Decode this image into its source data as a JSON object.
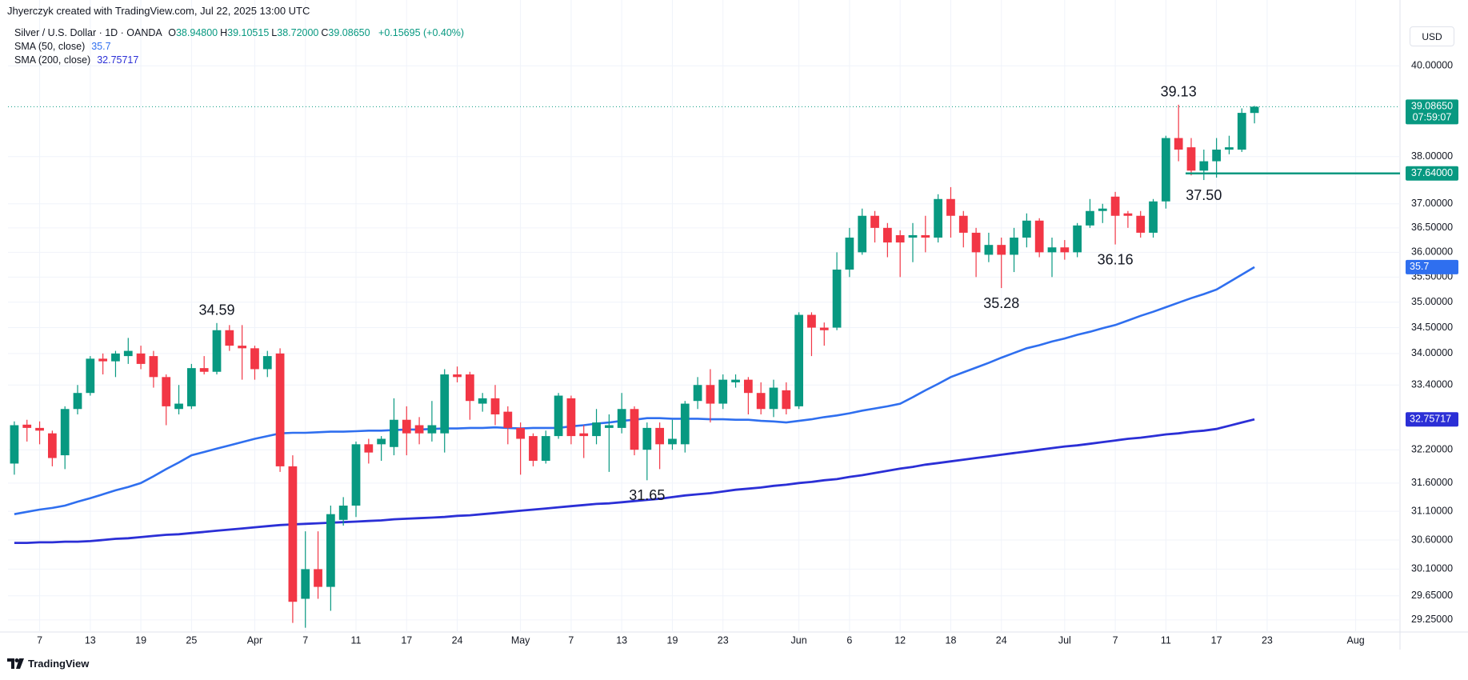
{
  "credit": "Jhyerczyk created with TradingView.com, Jul 22, 2025 13:00 UTC",
  "brand": "TradingView",
  "currency": "USD",
  "chart_data": {
    "type": "candlestick",
    "symbol": "Silver / U.S. Dollar · 1D · OANDA",
    "ohlc_header": [
      {
        "label": "O",
        "value": "38.94800"
      },
      {
        "label": "H",
        "value": "39.10515"
      },
      {
        "label": "L",
        "value": "38.72000"
      },
      {
        "label": "C",
        "value": "39.08650"
      }
    ],
    "change": "+0.15695 (+0.40%)",
    "countdown": "07:59:07",
    "up_color": "#089981",
    "down_color": "#f23645",
    "log_scale": true,
    "grid": true,
    "ylim": [
      29.05,
      40.9
    ],
    "yticks": [
      {
        "value": 40,
        "label": "40.00000"
      },
      {
        "value": 38,
        "label": "38.00000"
      },
      {
        "value": 37,
        "label": "37.00000"
      },
      {
        "value": 36.5,
        "label": "36.50000"
      },
      {
        "value": 36,
        "label": "36.00000"
      },
      {
        "value": 35.5,
        "label": "35.50000"
      },
      {
        "value": 35,
        "label": "35.00000"
      },
      {
        "value": 34.5,
        "label": "34.50000"
      },
      {
        "value": 34,
        "label": "34.00000"
      },
      {
        "value": 33.4,
        "label": "33.40000"
      },
      {
        "value": 32.2,
        "label": "32.20000"
      },
      {
        "value": 31.6,
        "label": "31.60000"
      },
      {
        "value": 31.1,
        "label": "31.10000"
      },
      {
        "value": 30.6,
        "label": "30.60000"
      },
      {
        "value": 30.1,
        "label": "30.10000"
      },
      {
        "value": 29.65,
        "label": "29.65000"
      },
      {
        "value": 29.25,
        "label": "29.25000"
      }
    ],
    "categories": [
      null,
      null,
      "7",
      null,
      null,
      null,
      "13",
      null,
      null,
      null,
      "19",
      null,
      null,
      null,
      "25",
      null,
      null,
      null,
      null,
      "Apr",
      null,
      null,
      null,
      "7",
      null,
      null,
      null,
      "11",
      null,
      null,
      null,
      "17",
      null,
      null,
      null,
      "24",
      null,
      null,
      null,
      null,
      "May",
      null,
      null,
      null,
      "7",
      null,
      null,
      null,
      "13",
      null,
      null,
      null,
      "19",
      null,
      null,
      null,
      "23",
      null,
      null,
      null,
      null,
      null,
      "Jun",
      null,
      null,
      null,
      "6",
      null,
      null,
      null,
      "12",
      null,
      null,
      null,
      "18",
      null,
      null,
      null,
      "24",
      null,
      null,
      null,
      null,
      "Jul",
      null,
      null,
      null,
      "7",
      null,
      null,
      null,
      "11",
      null,
      null,
      null,
      "17",
      null,
      null,
      null,
      "23",
      null,
      null,
      null,
      null,
      null,
      null,
      "Aug",
      null,
      null,
      null
    ],
    "open": [
      31.95,
      32.66,
      32.6,
      32.5,
      32.1,
      32.95,
      33.25,
      33.9,
      33.85,
      33.95,
      34.0,
      33.95,
      33.55,
      32.95,
      33.0,
      33.72,
      33.65,
      34.45,
      34.15,
      34.1,
      33.7,
      34.0,
      31.9,
      29.6,
      30.1,
      29.8,
      30.95,
      31.2,
      32.3,
      32.3,
      32.25,
      32.75,
      32.65,
      32.5,
      32.5,
      33.6,
      33.6,
      33.05,
      33.15,
      32.9,
      32.6,
      32.45,
      32.0,
      32.45,
      33.15,
      32.5,
      32.45,
      32.6,
      32.6,
      32.95,
      32.2,
      32.6,
      32.3,
      32.3,
      33.1,
      33.4,
      33.05,
      33.45,
      33.5,
      33.25,
      32.95,
      33.3,
      33.0,
      34.75,
      34.5,
      34.5,
      35.65,
      36.0,
      36.75,
      36.5,
      36.35,
      36.3,
      36.35,
      36.3,
      37.1,
      36.75,
      36.4,
      35.95,
      36.15,
      35.95,
      36.3,
      36.65,
      36.0,
      36.1,
      36.0,
      36.55,
      36.85,
      37.15,
      36.8,
      36.75,
      36.4,
      37.05,
      38.4,
      38.2,
      37.7,
      37.9,
      38.15,
      38.15,
      38.948,
      null,
      null,
      null,
      null,
      null,
      null,
      null,
      null,
      null,
      null,
      null
    ],
    "high": [
      32.72,
      32.75,
      32.72,
      32.55,
      33.0,
      33.4,
      33.95,
      34.0,
      34.05,
      34.3,
      34.15,
      34.05,
      33.6,
      33.4,
      33.8,
      33.95,
      34.59,
      34.55,
      34.55,
      34.15,
      34.05,
      34.1,
      32.1,
      30.75,
      30.75,
      31.2,
      31.35,
      32.35,
      32.4,
      32.45,
      33.15,
      33.0,
      32.8,
      33.1,
      33.7,
      33.75,
      33.65,
      33.25,
      33.4,
      33.0,
      32.7,
      32.5,
      32.55,
      33.25,
      33.2,
      32.65,
      32.95,
      32.85,
      33.25,
      33.0,
      32.7,
      32.7,
      32.75,
      33.1,
      33.55,
      33.7,
      33.6,
      33.6,
      33.55,
      33.45,
      33.5,
      33.45,
      34.8,
      34.8,
      34.6,
      36.0,
      36.5,
      36.9,
      36.85,
      36.6,
      36.45,
      36.6,
      36.75,
      37.2,
      37.35,
      36.85,
      36.5,
      36.4,
      36.3,
      36.5,
      36.8,
      36.7,
      36.3,
      36.25,
      36.6,
      37.1,
      37.0,
      37.25,
      36.85,
      36.85,
      37.1,
      38.45,
      39.13,
      38.4,
      38.15,
      38.4,
      38.45,
      39.05,
      39.10515,
      null,
      null,
      null,
      null,
      null,
      null,
      null,
      null,
      null,
      null,
      null
    ],
    "low": [
      31.75,
      32.35,
      32.3,
      31.9,
      31.85,
      32.85,
      33.2,
      33.6,
      33.55,
      33.8,
      33.7,
      33.35,
      32.65,
      32.85,
      32.95,
      33.6,
      33.6,
      34.05,
      33.5,
      33.5,
      33.55,
      31.8,
      29.2,
      29.12,
      29.6,
      29.4,
      30.85,
      31.0,
      31.95,
      32.0,
      32.1,
      32.1,
      32.3,
      32.35,
      32.15,
      33.45,
      32.75,
      32.9,
      32.65,
      32.3,
      31.75,
      31.9,
      31.95,
      32.4,
      32.3,
      32.05,
      32.3,
      31.8,
      32.5,
      32.1,
      31.65,
      31.85,
      32.2,
      32.15,
      32.95,
      32.7,
      32.95,
      33.35,
      32.85,
      32.85,
      32.8,
      32.85,
      32.95,
      33.95,
      34.15,
      34.45,
      35.5,
      35.95,
      36.2,
      35.9,
      35.5,
      35.8,
      36.0,
      36.2,
      36.3,
      36.1,
      35.5,
      35.8,
      35.28,
      35.6,
      36.1,
      35.9,
      35.5,
      35.85,
      35.9,
      36.5,
      36.6,
      36.16,
      36.5,
      36.3,
      36.3,
      36.9,
      37.9,
      37.6,
      37.5,
      37.55,
      38.05,
      38.1,
      38.72,
      null,
      null,
      null,
      null,
      null,
      null,
      null,
      null,
      null,
      null,
      null
    ],
    "close": [
      32.65,
      32.6,
      32.55,
      32.05,
      32.95,
      33.25,
      33.9,
      33.85,
      34.0,
      34.05,
      33.8,
      33.55,
      33.0,
      33.05,
      33.72,
      33.65,
      34.45,
      34.15,
      34.1,
      33.7,
      33.95,
      31.9,
      29.55,
      30.1,
      29.8,
      31.05,
      31.2,
      32.3,
      32.15,
      32.4,
      32.75,
      32.5,
      32.5,
      32.65,
      33.6,
      33.55,
      33.1,
      33.15,
      32.85,
      32.6,
      32.4,
      32.0,
      32.45,
      33.2,
      32.45,
      32.45,
      32.7,
      32.65,
      32.95,
      32.2,
      32.6,
      32.3,
      32.4,
      33.05,
      33.4,
      33.05,
      33.5,
      33.5,
      33.25,
      32.95,
      33.35,
      32.95,
      34.75,
      34.5,
      34.45,
      35.65,
      36.3,
      36.75,
      36.5,
      36.2,
      36.2,
      36.35,
      36.3,
      37.1,
      36.75,
      36.4,
      36.0,
      36.15,
      35.95,
      36.3,
      36.65,
      36.0,
      36.1,
      36.0,
      36.55,
      36.85,
      36.9,
      36.75,
      36.75,
      36.4,
      37.05,
      38.4,
      38.15,
      37.7,
      37.9,
      38.15,
      38.2,
      38.95,
      39.0865,
      null,
      null,
      null,
      null,
      null,
      null,
      null,
      null,
      null,
      null,
      null
    ],
    "high_labels": [
      null,
      null,
      null,
      null,
      null,
      null,
      null,
      null,
      null,
      null,
      null,
      null,
      null,
      null,
      null,
      null,
      "34.59",
      null,
      null,
      null,
      null,
      null,
      null,
      null,
      null,
      null,
      null,
      null,
      null,
      null,
      null,
      null,
      null,
      null,
      null,
      null,
      null,
      null,
      null,
      null,
      null,
      null,
      null,
      null,
      null,
      null,
      null,
      null,
      null,
      null,
      null,
      null,
      null,
      null,
      null,
      null,
      null,
      null,
      null,
      null,
      null,
      null,
      null,
      null,
      null,
      null,
      null,
      null,
      null,
      null,
      null,
      null,
      null,
      null,
      null,
      null,
      null,
      null,
      null,
      null,
      null,
      null,
      null,
      null,
      null,
      null,
      null,
      null,
      null,
      null,
      null,
      null,
      "39.13",
      null,
      null,
      null,
      null,
      null,
      null,
      null,
      null,
      null,
      null,
      null,
      null,
      null,
      null,
      null,
      null,
      null
    ],
    "low_labels": [
      null,
      null,
      null,
      null,
      null,
      null,
      null,
      null,
      null,
      null,
      null,
      null,
      null,
      null,
      null,
      null,
      null,
      null,
      null,
      null,
      null,
      null,
      null,
      null,
      null,
      null,
      null,
      null,
      null,
      null,
      null,
      null,
      null,
      null,
      null,
      null,
      null,
      null,
      null,
      null,
      null,
      null,
      null,
      null,
      null,
      null,
      null,
      null,
      null,
      null,
      "31.65",
      null,
      null,
      null,
      null,
      null,
      null,
      null,
      null,
      null,
      null,
      null,
      null,
      null,
      null,
      null,
      null,
      null,
      null,
      null,
      null,
      null,
      null,
      null,
      null,
      null,
      null,
      null,
      "35.28",
      null,
      null,
      null,
      null,
      null,
      null,
      null,
      null,
      "36.16",
      null,
      null,
      null,
      null,
      null,
      null,
      "37.50",
      null,
      null,
      null,
      null,
      null,
      null,
      null,
      null,
      null,
      null,
      null,
      null,
      null,
      null,
      null
    ],
    "series": [
      {
        "name": "SMA (50, close)",
        "color": "#2f6fef",
        "values": [
          31.05,
          31.09,
          31.13,
          31.16,
          31.2,
          31.27,
          31.33,
          31.4,
          31.47,
          31.53,
          31.6,
          31.72,
          31.85,
          31.97,
          32.1,
          32.16,
          32.22,
          32.28,
          32.34,
          32.4,
          32.45,
          32.5,
          32.51,
          32.51,
          32.52,
          32.53,
          32.53,
          32.54,
          32.55,
          32.55,
          32.56,
          32.57,
          32.57,
          32.58,
          32.59,
          32.59,
          32.6,
          32.6,
          32.61,
          32.6,
          32.59,
          32.6,
          32.6,
          32.6,
          32.63,
          32.65,
          32.68,
          32.7,
          32.73,
          32.75,
          32.78,
          32.78,
          32.77,
          32.77,
          32.77,
          32.76,
          32.76,
          32.75,
          32.75,
          32.73,
          32.72,
          32.7,
          32.73,
          32.76,
          32.8,
          32.83,
          32.87,
          32.92,
          32.96,
          33.0,
          33.05,
          33.17,
          33.3,
          33.42,
          33.55,
          33.64,
          33.73,
          33.82,
          33.92,
          34.01,
          34.1,
          34.16,
          34.23,
          34.29,
          34.36,
          34.42,
          34.49,
          34.55,
          34.64,
          34.73,
          34.81,
          34.9,
          34.99,
          35.08,
          35.16,
          35.25,
          35.4,
          35.55,
          35.7,
          null,
          null,
          null,
          null,
          null,
          null,
          null,
          null,
          null,
          null,
          null
        ]
      },
      {
        "name": "SMA (200, close)",
        "color": "#2b2fd6",
        "values": [
          30.55,
          30.55,
          30.56,
          30.56,
          30.57,
          30.57,
          30.58,
          30.6,
          30.62,
          30.63,
          30.65,
          30.67,
          30.69,
          30.7,
          30.72,
          30.74,
          30.76,
          30.78,
          30.8,
          30.82,
          30.84,
          30.86,
          30.87,
          30.88,
          30.89,
          30.9,
          30.91,
          30.92,
          30.93,
          30.94,
          30.96,
          30.97,
          30.98,
          30.99,
          31.0,
          31.02,
          31.03,
          31.05,
          31.07,
          31.09,
          31.11,
          31.13,
          31.15,
          31.17,
          31.19,
          31.21,
          31.23,
          31.24,
          31.26,
          31.28,
          31.3,
          31.32,
          31.35,
          31.38,
          31.4,
          31.42,
          31.45,
          31.48,
          31.5,
          31.52,
          31.55,
          31.57,
          31.6,
          31.62,
          31.65,
          31.67,
          31.71,
          31.74,
          31.78,
          31.82,
          31.86,
          31.89,
          31.93,
          31.96,
          31.99,
          32.02,
          32.05,
          32.08,
          32.11,
          32.14,
          32.17,
          32.2,
          32.23,
          32.26,
          32.28,
          32.31,
          32.34,
          32.37,
          32.4,
          32.42,
          32.45,
          32.48,
          32.5,
          32.53,
          32.55,
          32.58,
          32.64,
          32.7,
          32.75717,
          null,
          null,
          null,
          null,
          null,
          null,
          null,
          null,
          null,
          null,
          null
        ]
      }
    ],
    "hlines": [
      {
        "value": 37.64,
        "label": "37.64000",
        "color": "#089981"
      }
    ]
  }
}
